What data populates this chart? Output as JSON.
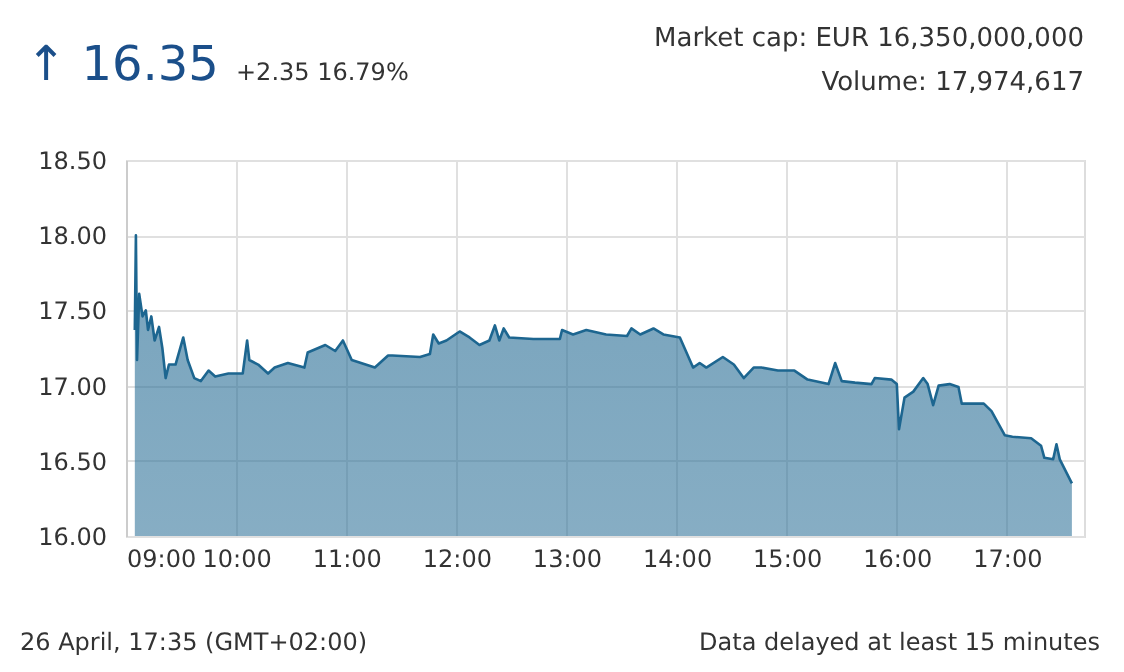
{
  "chart_data": {
    "type": "area",
    "title": "↑ 16.35",
    "subtitle": "+2.35 16.79%",
    "annotations": [
      "Market cap: EUR 16,350,000,000",
      "Volume: 17,974,617",
      "26 April, 17:35  (GMT+02:00)",
      "Data delayed at least 15 minutes"
    ],
    "x": [
      9.08,
      9.09,
      9.1,
      9.12,
      9.15,
      9.18,
      9.2,
      9.23,
      9.26,
      9.3,
      9.33,
      9.36,
      9.39,
      9.45,
      9.52,
      9.56,
      9.62,
      9.68,
      9.75,
      9.81,
      9.93,
      10.06,
      10.1,
      10.12,
      10.2,
      10.29,
      10.35,
      10.47,
      10.62,
      10.65,
      10.81,
      10.9,
      10.97,
      11.05,
      11.26,
      11.38,
      11.42,
      11.67,
      11.76,
      11.79,
      11.84,
      11.91,
      12.03,
      12.12,
      12.21,
      12.3,
      12.35,
      12.39,
      12.43,
      12.48,
      12.7,
      12.94,
      12.96,
      13.06,
      13.18,
      13.36,
      13.55,
      13.59,
      13.67,
      13.79,
      13.88,
      14.03,
      14.15,
      14.21,
      14.27,
      14.42,
      14.52,
      14.61,
      14.7,
      14.77,
      14.92,
      15.07,
      15.19,
      15.38,
      15.41,
      15.44,
      15.5,
      15.62,
      15.77,
      15.8,
      15.95,
      16.0,
      16.02,
      16.07,
      16.15,
      16.24,
      16.28,
      16.33,
      16.38,
      16.48,
      16.56,
      16.59,
      16.79,
      16.86,
      16.92,
      16.98,
      17.05,
      17.22,
      17.31,
      17.34,
      17.42,
      17.45,
      17.48,
      17.59
    ],
    "series": [
      {
        "color": "#1d6690",
        "values": [
          17.37,
          18.0,
          17.17,
          17.61,
          17.46,
          17.5,
          17.37,
          17.46,
          17.3,
          17.39,
          17.25,
          17.05,
          17.14,
          17.14,
          17.32,
          17.17,
          17.05,
          17.03,
          17.1,
          17.06,
          17.08,
          17.08,
          17.3,
          17.17,
          17.14,
          17.08,
          17.12,
          17.15,
          17.12,
          17.22,
          17.27,
          17.23,
          17.3,
          17.17,
          17.12,
          17.2,
          17.2,
          17.19,
          17.21,
          17.34,
          17.28,
          17.3,
          17.36,
          17.32,
          17.27,
          17.3,
          17.4,
          17.3,
          17.38,
          17.32,
          17.31,
          17.31,
          17.37,
          17.34,
          17.37,
          17.34,
          17.33,
          17.38,
          17.34,
          17.38,
          17.34,
          17.32,
          17.12,
          17.15,
          17.12,
          17.19,
          17.14,
          17.05,
          17.12,
          17.12,
          17.1,
          17.1,
          17.04,
          17.01,
          17.08,
          17.15,
          17.03,
          17.02,
          17.01,
          17.05,
          17.04,
          17.01,
          16.71,
          16.92,
          16.96,
          17.05,
          17.01,
          16.87,
          17.0,
          17.01,
          16.99,
          16.88,
          16.88,
          16.83,
          16.75,
          16.67,
          16.66,
          16.65,
          16.6,
          16.52,
          16.51,
          16.61,
          16.51,
          16.35
        ]
      }
    ],
    "xlim": [
      9,
      17.7
    ],
    "xticks": [
      {
        "value": 9,
        "label": "09:00"
      },
      {
        "value": 10,
        "label": "10:00"
      },
      {
        "value": 11,
        "label": "11:00"
      },
      {
        "value": 12,
        "label": "12:00"
      },
      {
        "value": 13,
        "label": "13:00"
      },
      {
        "value": 14,
        "label": "14:00"
      },
      {
        "value": 15,
        "label": "15:00"
      },
      {
        "value": 16,
        "label": "16:00"
      },
      {
        "value": 17,
        "label": "17:00"
      }
    ],
    "ylim": [
      16,
      18.5
    ],
    "yticks": [
      {
        "value": 16,
        "label": "16.00"
      },
      {
        "value": 16.5,
        "label": "16.50"
      },
      {
        "value": 17,
        "label": "17.00"
      },
      {
        "value": 17.5,
        "label": "17.50"
      },
      {
        "value": 18,
        "label": "18.00"
      },
      {
        "value": 18.5,
        "label": "18.50"
      }
    ],
    "grid": true,
    "marker": "none",
    "line_style": "solid"
  }
}
